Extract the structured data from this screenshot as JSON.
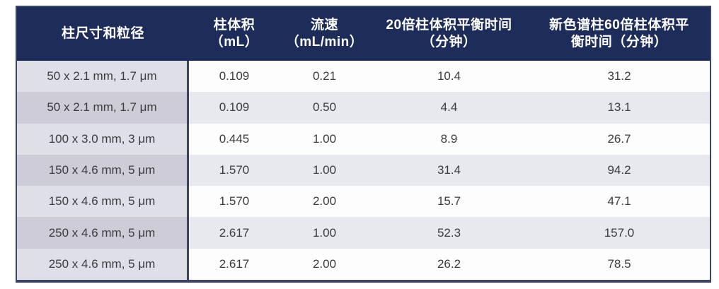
{
  "table": {
    "headers": [
      {
        "lines": [
          "柱尺寸和粒径",
          ""
        ]
      },
      {
        "lines": [
          "柱体积",
          "（mL）"
        ]
      },
      {
        "lines": [
          "流速",
          "（mL/min）"
        ]
      },
      {
        "lines": [
          "20倍柱体积平衡时间",
          "（分钟）"
        ]
      },
      {
        "lines": [
          "新色谱柱60倍柱体积平",
          "衡时间（分钟）"
        ]
      }
    ],
    "rows": [
      [
        "50 x 2.1 mm, 1.7 μm",
        "0.109",
        "0.21",
        "10.4",
        "31.2"
      ],
      [
        "50 x 2.1 mm, 1.7 μm",
        "0.109",
        "0.50",
        "4.4",
        "13.1"
      ],
      [
        "100 x 3.0 mm, 3 μm",
        "0.445",
        "1.00",
        "8.9",
        "26.7"
      ],
      [
        "150 x 4.6 mm, 5 μm",
        "1.570",
        "1.00",
        "31.4",
        "94.2"
      ],
      [
        "150 x 4.6 mm, 5 μm",
        "1.570",
        "2.00",
        "15.7",
        "47.1"
      ],
      [
        "250 x 4.6 mm, 5 μm",
        "2.617",
        "1.00",
        "52.3",
        "157.0"
      ],
      [
        "250 x 4.6 mm, 5 μm",
        "2.617",
        "2.00",
        "26.2",
        "78.5"
      ]
    ]
  },
  "colors": {
    "header_bg": "#1e2c5a",
    "header_text": "#ffffff",
    "stripe_data": "#e8e9ef",
    "label_col_light": "#dfdfe8",
    "label_col_dark": "#cdccd8",
    "divider": "#3f4356",
    "outer_border": "#3e4563",
    "body_text": "#3b3b3b"
  }
}
